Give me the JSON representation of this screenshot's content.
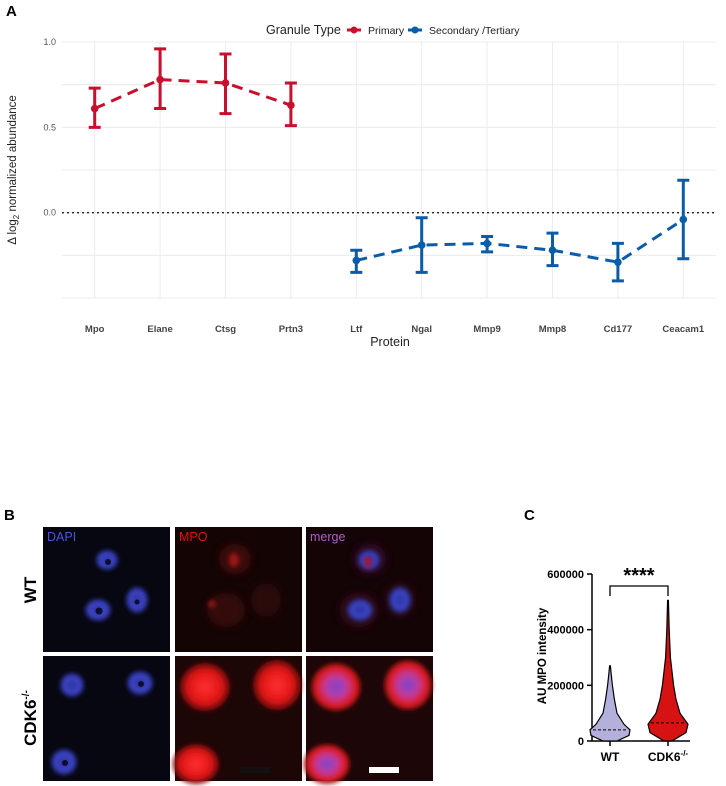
{
  "panel_labels": {
    "a": "A",
    "b": "B",
    "c": "C"
  },
  "colors": {
    "primary": "#c8102e",
    "secondary": "#0a5ca8",
    "violin_wt": "#b3b0dc",
    "violin_ko": "#d61212",
    "dapi": "#4a55d8",
    "mpo": "#e01010",
    "merge": "#b05fc4"
  },
  "chart_data": [
    {
      "id": "A",
      "type": "line",
      "xlabel": "Protein",
      "ylabel_prefix": "Δ log",
      "ylabel_sub": "2",
      "ylabel_suffix": " normalized abundance",
      "legend_title": "Granule Type",
      "legend_position": "top",
      "ylim": [
        -0.5,
        1.0
      ],
      "yticks": [
        {
          "value": 1.0,
          "label": "1.0"
        },
        {
          "value": 0.5,
          "label": "0.5"
        },
        {
          "value": 0.0,
          "label": "0.0"
        }
      ],
      "reference_line": 0.0,
      "categories": [
        "Mpo",
        "Elane",
        "Ctsg",
        "Prtn3",
        "Ltf",
        "Ngal",
        "Mmp9",
        "Mmp8",
        "Cd177",
        "Ceacam1"
      ],
      "series": [
        {
          "name": "Primary",
          "color_key": "primary",
          "points": [
            {
              "category": "Mpo",
              "mean": 0.61,
              "low": 0.5,
              "high": 0.73
            },
            {
              "category": "Elane",
              "mean": 0.78,
              "low": 0.61,
              "high": 0.96
            },
            {
              "category": "Ctsg",
              "mean": 0.76,
              "low": 0.58,
              "high": 0.93
            },
            {
              "category": "Prtn3",
              "mean": 0.63,
              "low": 0.51,
              "high": 0.76
            }
          ]
        },
        {
          "name": "Secondary /Tertiary",
          "color_key": "secondary",
          "points": [
            {
              "category": "Ltf",
              "mean": -0.28,
              "low": -0.35,
              "high": -0.22
            },
            {
              "category": "Ngal",
              "mean": -0.19,
              "low": -0.35,
              "high": -0.03
            },
            {
              "category": "Mmp9",
              "mean": -0.18,
              "low": -0.23,
              "high": -0.14
            },
            {
              "category": "Mmp8",
              "mean": -0.22,
              "low": -0.31,
              "high": -0.12
            },
            {
              "category": "Cd177",
              "mean": -0.29,
              "low": -0.4,
              "high": -0.18
            },
            {
              "category": "Ceacam1",
              "mean": -0.04,
              "low": -0.27,
              "high": 0.19
            }
          ]
        }
      ]
    },
    {
      "id": "C",
      "type": "violin",
      "ylabel": "AU MPO intensity",
      "ylim": [
        0,
        600000
      ],
      "yticks": [
        {
          "value": 0,
          "label": "0"
        },
        {
          "value": 200000,
          "label": "200000"
        },
        {
          "value": 400000,
          "label": "400000"
        },
        {
          "value": 600000,
          "label": "600000"
        }
      ],
      "groups": [
        {
          "label": "WT",
          "superscript": "",
          "color_key": "violin_wt",
          "median": 40000,
          "max": 270000,
          "profile": [
            [
              0,
              0.35
            ],
            [
              20000,
              0.95
            ],
            [
              40000,
              1.0
            ],
            [
              60000,
              0.7
            ],
            [
              100000,
              0.35
            ],
            [
              150000,
              0.22
            ],
            [
              200000,
              0.12
            ],
            [
              240000,
              0.06
            ],
            [
              270000,
              0.02
            ]
          ]
        },
        {
          "label": "CDK6",
          "superscript": "-/-",
          "color_key": "violin_ko",
          "median": 65000,
          "max": 505000,
          "profile": [
            [
              0,
              0.2
            ],
            [
              30000,
              0.9
            ],
            [
              60000,
              1.0
            ],
            [
              100000,
              0.6
            ],
            [
              150000,
              0.4
            ],
            [
              200000,
              0.28
            ],
            [
              300000,
              0.12
            ],
            [
              400000,
              0.06
            ],
            [
              505000,
              0.02
            ]
          ]
        }
      ],
      "significance": "****"
    }
  ],
  "microscopy": {
    "columns": [
      "DAPI",
      "MPO",
      "merge"
    ],
    "rows": [
      {
        "label": "WT",
        "superscript": ""
      },
      {
        "label": "CDK6",
        "superscript": "-/-"
      }
    ]
  }
}
